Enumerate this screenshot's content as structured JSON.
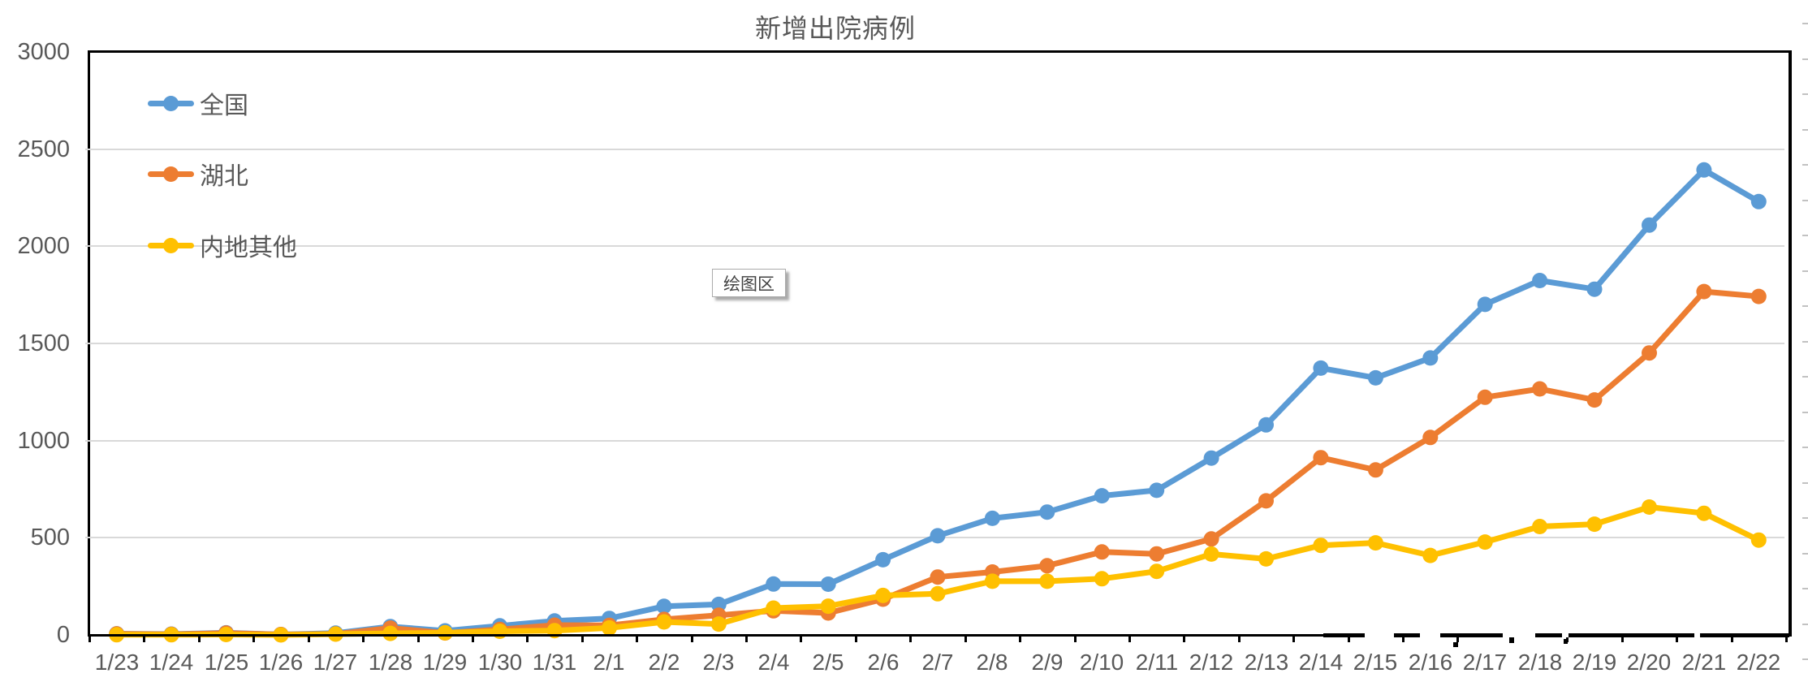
{
  "title": "新增出院病例",
  "tooltip": {
    "text": "绘图区"
  },
  "colors": {
    "axis": "#000000",
    "gridline": "#D9D9D9",
    "text": "#595959",
    "series_national": "#5B9BD5",
    "series_hubei": "#ED7D31",
    "series_other": "#FFC000"
  },
  "chart_data": {
    "type": "line",
    "title": "新增出院病例",
    "xlabel": "",
    "ylabel": "",
    "ylim": [
      0,
      3000
    ],
    "y_ticks": [
      0,
      500,
      1000,
      1500,
      2000,
      2500,
      3000
    ],
    "grid": true,
    "legend_position": "top-left-inside",
    "categories": [
      "1/23",
      "1/24",
      "1/25",
      "1/26",
      "1/27",
      "1/28",
      "1/29",
      "1/30",
      "1/31",
      "2/1",
      "2/2",
      "2/3",
      "2/4",
      "2/5",
      "2/6",
      "2/7",
      "2/8",
      "2/9",
      "2/10",
      "2/11",
      "2/12",
      "2/13",
      "2/14",
      "2/15",
      "2/16",
      "2/17",
      "2/18",
      "2/19",
      "2/20",
      "2/21",
      "2/22"
    ],
    "series": [
      {
        "name": "全国",
        "color": "#5B9BD5",
        "values": [
          6,
          4,
          11,
          2,
          9,
          43,
          21,
          47,
          72,
          85,
          147,
          157,
          262,
          261,
          387,
          510,
          600,
          632,
          716,
          744,
          910,
          1081,
          1373,
          1323,
          1425,
          1701,
          1824,
          1779,
          2109,
          2393,
          2230
        ]
      },
      {
        "name": "湖北",
        "color": "#ED7D31",
        "values": [
          5,
          3,
          9,
          2,
          5,
          35,
          10,
          28,
          50,
          49,
          80,
          101,
          124,
          113,
          184,
          298,
          324,
          356,
          427,
          417,
          494,
          690,
          912,
          849,
          1016,
          1223,
          1266,
          1209,
          1451,
          1767,
          1742
        ]
      },
      {
        "name": "内地其他",
        "color": "#FFC000",
        "values": [
          1,
          1,
          2,
          0,
          4,
          8,
          11,
          19,
          22,
          36,
          67,
          56,
          138,
          148,
          203,
          212,
          276,
          276,
          289,
          327,
          416,
          391,
          461,
          474,
          409,
          478,
          558,
          570,
          658,
          626,
          488
        ]
      }
    ]
  }
}
